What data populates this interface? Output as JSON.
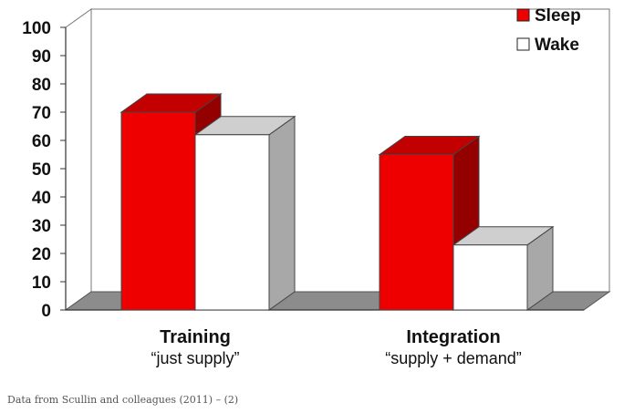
{
  "chart_data": {
    "type": "bar",
    "categories": [
      "Training",
      "Integration"
    ],
    "category_subtitles": [
      "“just supply”",
      "“supply + demand”"
    ],
    "series": [
      {
        "name": "Sleep",
        "values": [
          70,
          55
        ],
        "color": "#ee0000"
      },
      {
        "name": "Wake",
        "values": [
          62,
          23
        ],
        "color": "#ffffff"
      }
    ],
    "yticks": [
      0,
      10,
      20,
      30,
      40,
      50,
      60,
      70,
      80,
      90,
      100
    ],
    "ylim": [
      0,
      100
    ],
    "legend_position": "top-right",
    "grid": false,
    "style": "3d"
  },
  "caption": "Data from Scullin and colleagues (2011) – (2)"
}
